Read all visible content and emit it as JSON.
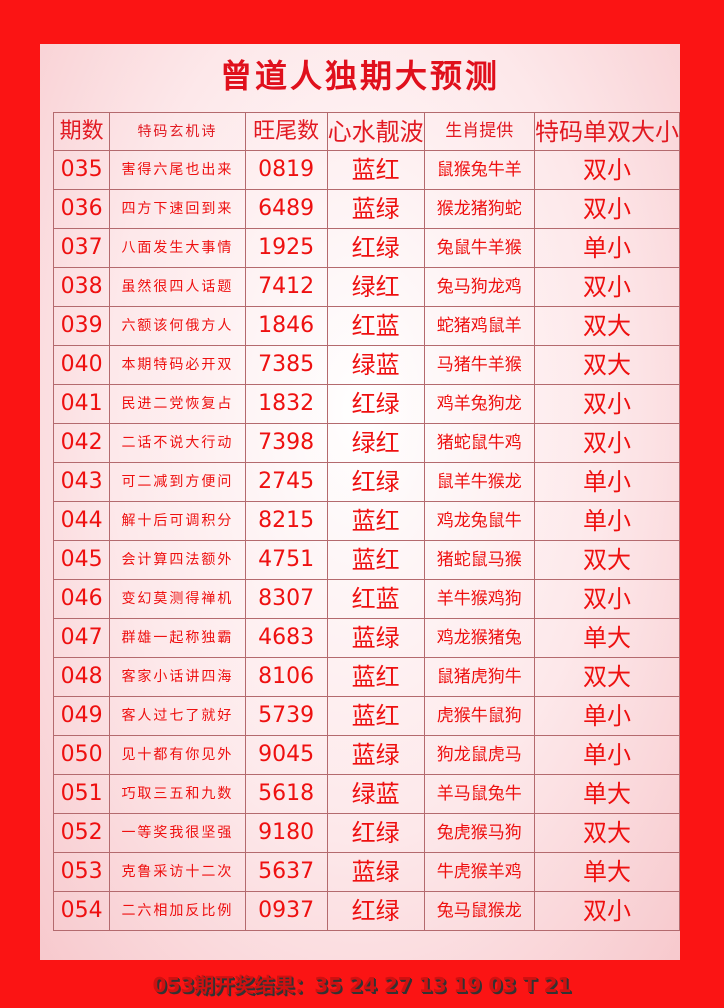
{
  "title": "曾道人独期大预测",
  "headers": [
    "期数",
    "特码玄机诗",
    "旺尾数",
    "心水靓波",
    "生肖提供",
    "特码单双大小"
  ],
  "rows": [
    [
      "035",
      "害得六尾也出来",
      "0819",
      "蓝红",
      "鼠猴兔牛羊",
      "双小"
    ],
    [
      "036",
      "四方下速回到来",
      "6489",
      "蓝绿",
      "猴龙猪狗蛇",
      "双小"
    ],
    [
      "037",
      "八面发生大事情",
      "1925",
      "红绿",
      "兔鼠牛羊猴",
      "单小"
    ],
    [
      "038",
      "虽然很四人话题",
      "7412",
      "绿红",
      "兔马狗龙鸡",
      "双小"
    ],
    [
      "039",
      "六额该何俄方人",
      "1846",
      "红蓝",
      "蛇猪鸡鼠羊",
      "双大"
    ],
    [
      "040",
      "本期特码必开双",
      "7385",
      "绿蓝",
      "马猪牛羊猴",
      "双大"
    ],
    [
      "041",
      "民进二党恢复占",
      "1832",
      "红绿",
      "鸡羊兔狗龙",
      "双小"
    ],
    [
      "042",
      "二话不说大行动",
      "7398",
      "绿红",
      "猪蛇鼠牛鸡",
      "双小"
    ],
    [
      "043",
      "可二减到方便问",
      "2745",
      "红绿",
      "鼠羊牛猴龙",
      "单小"
    ],
    [
      "044",
      "解十后可调积分",
      "8215",
      "蓝红",
      "鸡龙兔鼠牛",
      "单小"
    ],
    [
      "045",
      "会计算四法额外",
      "4751",
      "蓝红",
      "猪蛇鼠马猴",
      "双大"
    ],
    [
      "046",
      "变幻莫测得禅机",
      "8307",
      "红蓝",
      "羊牛猴鸡狗",
      "双小"
    ],
    [
      "047",
      "群雄一起称独霸",
      "4683",
      "蓝绿",
      "鸡龙猴猪兔",
      "单大"
    ],
    [
      "048",
      "客家小话讲四海",
      "8106",
      "蓝红",
      "鼠猪虎狗牛",
      "双大"
    ],
    [
      "049",
      "客人过七了就好",
      "5739",
      "蓝红",
      "虎猴牛鼠狗",
      "单小"
    ],
    [
      "050",
      "见十都有你见外",
      "9045",
      "蓝绿",
      "狗龙鼠虎马",
      "单小"
    ],
    [
      "051",
      "巧取三五和九数",
      "5618",
      "绿蓝",
      "羊马鼠兔牛",
      "单大"
    ],
    [
      "052",
      "一等奖我很坚强",
      "9180",
      "红绿",
      "兔虎猴马狗",
      "双大"
    ],
    [
      "053",
      "克鲁采访十二次",
      "5637",
      "蓝绿",
      "牛虎猴羊鸡",
      "单大"
    ],
    [
      "054",
      "二六相加反比例",
      "0937",
      "红绿",
      "兔马鼠猴龙",
      "双小"
    ]
  ],
  "footer": "053期开奖结果：35 24 27 13 19 03 T 21"
}
